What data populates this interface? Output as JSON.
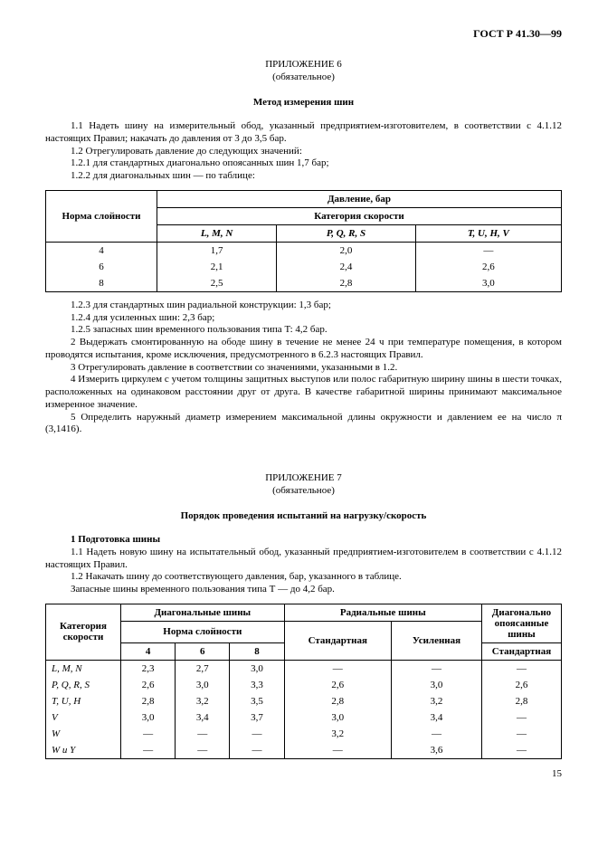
{
  "docId": "ГОСТ Р 41.30—99",
  "appendix6": {
    "title": "ПРИЛОЖЕНИЕ 6",
    "sub": "(обязательное)",
    "heading": "Метод измерения шин",
    "p11": "1.1 Надеть шину на измерительный обод, указанный предприятием-изготовителем, в соответствии с 4.1.12 настоящих Правил; накачать до давления от 3 до 3,5 бар.",
    "p12": "1.2 Отрегулировать давление до следующих значений:",
    "p121": "1.2.1 для стандартных диагонально опоясанных шин 1,7 бар;",
    "p122": "1.2.2 для диагональных шин — по таблице:",
    "table": {
      "rowHeader": "Норма слойности",
      "colGroup": "Давление, бар",
      "colSub": "Категория скорости",
      "cols": [
        "L, M, N",
        "P, Q, R, S",
        "T, U, H, V"
      ],
      "rows": [
        {
          "ply": "4",
          "v": [
            "1,7",
            "2,0",
            "—"
          ]
        },
        {
          "ply": "6",
          "v": [
            "2,1",
            "2,4",
            "2,6"
          ]
        },
        {
          "ply": "8",
          "v": [
            "2,5",
            "2,8",
            "3,0"
          ]
        }
      ]
    },
    "p123": "1.2.3 для стандартных шин радиальной конструкции: 1,3 бар;",
    "p124": "1.2.4 для усиленных шин: 2,3 бар;",
    "p125": "1.2.5 запасных шин временного пользования типа T: 4,2 бар.",
    "p2": "2 Выдержать смонтированную на ободе шину в течение не менее 24 ч при температуре помещения, в котором проводятся испытания, кроме исключения, предусмотренного в 6.2.3 настоящих Правил.",
    "p3": "3 Отрегулировать давление в соответствии со значениями, указанными в 1.2.",
    "p4": "4 Измерить циркулем с учетом толщины защитных выступов или полос габаритную ширину шины в шести точках, расположенных на одинаковом расстоянии друг от друга. В качестве габаритной ширины принимают максимальное измеренное значение.",
    "p5": "5 Определить наружный диаметр измерением максимальной длины окружности и давлением ее на число π (3,1416)."
  },
  "appendix7": {
    "title": "ПРИЛОЖЕНИЕ 7",
    "sub": "(обязательное)",
    "heading": "Порядок проведения испытаний на нагрузку/скорость",
    "s1": "1 Подготовка шины",
    "p11": "1.1 Надеть новую шину на испытательный обод, указанный предприятием-изготовителем в соответствии с 4.1.12 настоящих Правил.",
    "p12": "1.2 Накачать шину до соответствующего давления, бар, указанного в таблице.",
    "p12b": "Запасные шины временного пользования типа Т — до 4,2 бар.",
    "table": {
      "catHeader": "Категория скорости",
      "diagHeader": "Диагональные шины",
      "radHeader": "Радиальные шины",
      "beltHeader": "Диагонально опоясанные шины",
      "plyHeader": "Норма слойности",
      "plyCols": [
        "4",
        "6",
        "8"
      ],
      "radStd": "Стандартная",
      "radRein": "Усиленная",
      "beltStd": "Стандартная",
      "rows": [
        {
          "cat": "L, M, N",
          "d": [
            "2,3",
            "2,7",
            "3,0"
          ],
          "r": [
            "—",
            "—"
          ],
          "b": "—"
        },
        {
          "cat": "P, Q, R, S",
          "d": [
            "2,6",
            "3,0",
            "3,3"
          ],
          "r": [
            "2,6",
            "3,0"
          ],
          "b": "2,6"
        },
        {
          "cat": "T, U, H",
          "d": [
            "2,8",
            "3,2",
            "3,5"
          ],
          "r": [
            "2,8",
            "3,2"
          ],
          "b": "2,8"
        },
        {
          "cat": "V",
          "d": [
            "3,0",
            "3,4",
            "3,7"
          ],
          "r": [
            "3,0",
            "3,4"
          ],
          "b": "—"
        },
        {
          "cat": "W",
          "d": [
            "—",
            "—",
            "—"
          ],
          "r": [
            "3,2",
            "—"
          ],
          "b": "—"
        },
        {
          "cat": "W и Y",
          "d": [
            "—",
            "—",
            "—"
          ],
          "r": [
            "—",
            "3,6"
          ],
          "b": "—"
        }
      ]
    }
  },
  "pageNum": "15"
}
